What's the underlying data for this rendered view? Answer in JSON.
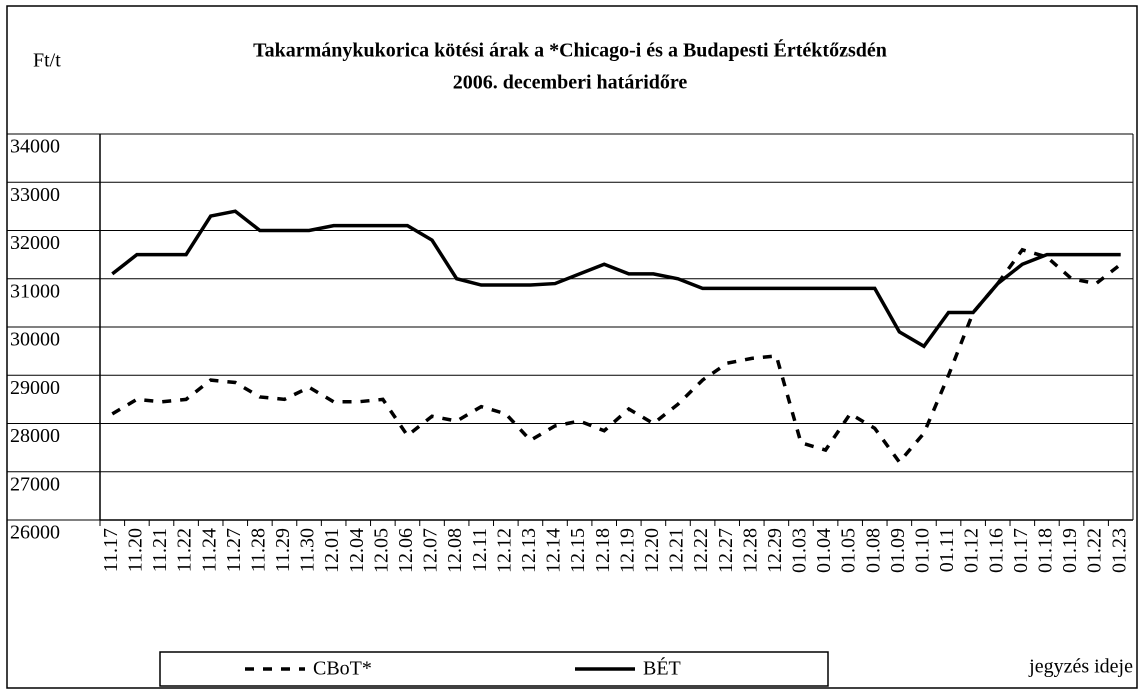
{
  "chart_data": {
    "type": "line",
    "title": "Takarmánykukorica kötési árak a *Chicago-i és a Budapesti Értéktőzsdén",
    "subtitle": "2006. decemberi határidőre",
    "y_label": "Ft/t",
    "x_label": "jegyzés ideje",
    "categories": [
      "11.17",
      "11.20",
      "11.21",
      "11.22",
      "11.24",
      "11.27",
      "11.28",
      "11.29",
      "11.30",
      "12.01",
      "12.04",
      "12.05",
      "12.06",
      "12.07",
      "12.08",
      "12.11",
      "12.12",
      "12.13",
      "12.14",
      "12.15",
      "12.18",
      "12.19",
      "12.20",
      "12.21",
      "12.22",
      "12.27",
      "12.28",
      "12.29",
      "01.03",
      "01.04",
      "01.05",
      "01.08",
      "01.09",
      "01.10",
      "01.11",
      "01.12",
      "01.16",
      "01.17",
      "01.18",
      "01.19",
      "01.22",
      "01.23"
    ],
    "series": [
      {
        "name": "CBoT*",
        "color": "#000000",
        "dash": true,
        "values": [
          28200,
          28500,
          28450,
          28500,
          28900,
          28850,
          28550,
          28500,
          28750,
          28450,
          28450,
          28500,
          27750,
          28150,
          28050,
          28350,
          28200,
          27650,
          27950,
          28050,
          27850,
          28300,
          28000,
          28400,
          28900,
          29250,
          29350,
          29400,
          27600,
          27450,
          28200,
          27900,
          27200,
          27800,
          29000,
          30300,
          30900,
          31600,
          31450,
          31000,
          30900,
          31300
        ]
      },
      {
        "name": "BÉT",
        "color": "#000000",
        "dash": false,
        "values": [
          31100,
          31500,
          31500,
          31500,
          32300,
          32400,
          32000,
          32000,
          32000,
          32100,
          32100,
          32100,
          32100,
          31800,
          31000,
          30870,
          30870,
          30870,
          30900,
          31100,
          31300,
          31100,
          31100,
          31000,
          30800,
          30800,
          30800,
          30800,
          30800,
          30800,
          30800,
          30800,
          29900,
          29600,
          30300,
          30300,
          30900,
          31300,
          31500,
          31500,
          31500,
          31500
        ]
      }
    ],
    "ylim": [
      26000,
      34000
    ],
    "yticks": [
      26000,
      27000,
      28000,
      29000,
      30000,
      31000,
      32000,
      33000,
      34000
    ],
    "grid": true,
    "legend": "bottom"
  }
}
